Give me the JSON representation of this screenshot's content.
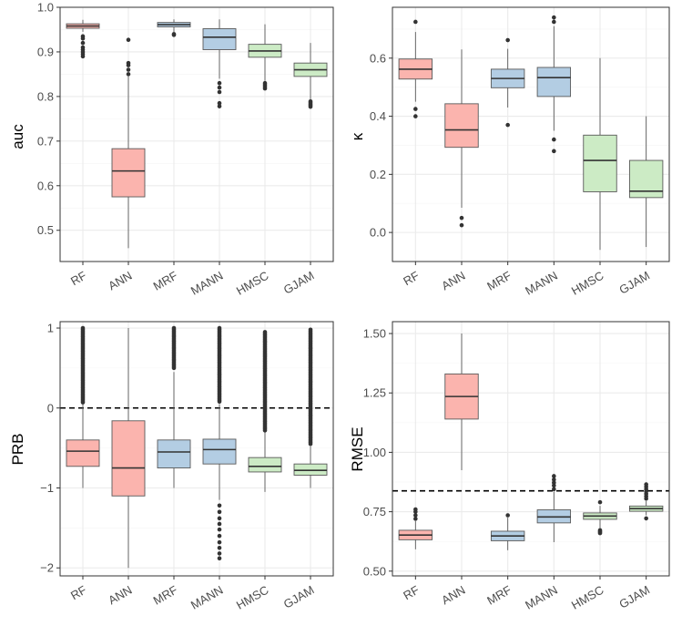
{
  "colors": {
    "group1_fill": "#fbb4ae",
    "group2_fill": "#b3cde3",
    "group3_fill": "#ccebc5",
    "outline": "#595959",
    "median": "#333333",
    "grid_major": "#ebebeb",
    "grid_minor": "#f4f4f4",
    "panel_border": "#333333",
    "reference_line": "#000000"
  },
  "chart_data": [
    {
      "id": "auc",
      "type": "box",
      "ylabel": "auc",
      "ylim": [
        0.43,
        1.0
      ],
      "yticks": [
        0.5,
        0.6,
        0.7,
        0.8,
        0.9,
        1.0
      ],
      "ytick_labels": [
        "0.5",
        "0.6",
        "0.7",
        "0.8",
        "0.9",
        "1.0"
      ],
      "minor_ticks": [
        0.55,
        0.65,
        0.75,
        0.85,
        0.95
      ],
      "categories": [
        "RF",
        "ANN",
        "MRF",
        "MANN",
        "HMSC",
        "GJAM"
      ],
      "groups": [
        1,
        1,
        2,
        2,
        3,
        3
      ],
      "reference_line": null,
      "boxes": [
        {
          "q1": 0.953,
          "median": 0.958,
          "q3": 0.963,
          "whisker_low": 0.945,
          "whisker_high": 0.972,
          "outliers": [
            0.935,
            0.93,
            0.92,
            0.91,
            0.905,
            0.9,
            0.895,
            0.89
          ]
        },
        {
          "q1": 0.575,
          "median": 0.633,
          "q3": 0.683,
          "whisker_low": 0.46,
          "whisker_high": 0.845,
          "outliers": [
            0.85,
            0.86,
            0.87,
            0.875,
            0.927
          ]
        },
        {
          "q1": 0.956,
          "median": 0.961,
          "q3": 0.966,
          "whisker_low": 0.944,
          "whisker_high": 0.973,
          "outliers": [
            0.94,
            0.938
          ]
        },
        {
          "q1": 0.905,
          "median": 0.933,
          "q3": 0.952,
          "whisker_low": 0.84,
          "whisker_high": 0.973,
          "outliers": [
            0.83,
            0.82,
            0.81,
            0.785,
            0.778
          ]
        },
        {
          "q1": 0.888,
          "median": 0.902,
          "q3": 0.917,
          "whisker_low": 0.835,
          "whisker_high": 0.962,
          "outliers": [
            0.83,
            0.826,
            0.822,
            0.818
          ]
        },
        {
          "q1": 0.845,
          "median": 0.86,
          "q3": 0.875,
          "whisker_low": 0.792,
          "whisker_high": 0.92,
          "outliers": [
            0.789,
            0.786,
            0.783,
            0.78,
            0.777
          ]
        }
      ]
    },
    {
      "id": "kappa",
      "type": "box",
      "ylabel": "κ",
      "ylim": [
        -0.1,
        0.775
      ],
      "yticks": [
        0.0,
        0.2,
        0.4,
        0.6
      ],
      "ytick_labels": [
        "0.0",
        "0.2",
        "0.4",
        "0.6"
      ],
      "minor_ticks": [
        -0.1,
        0.1,
        0.3,
        0.5,
        0.7
      ],
      "categories": [
        "RF",
        "ANN",
        "MRF",
        "MANN",
        "HMSC",
        "GJAM"
      ],
      "groups": [
        1,
        1,
        2,
        2,
        3,
        3
      ],
      "reference_line": null,
      "boxes": [
        {
          "q1": 0.528,
          "median": 0.562,
          "q3": 0.597,
          "whisker_low": 0.45,
          "whisker_high": 0.69,
          "outliers": [
            0.725,
            0.425,
            0.4
          ]
        },
        {
          "q1": 0.293,
          "median": 0.353,
          "q3": 0.443,
          "whisker_low": 0.085,
          "whisker_high": 0.63,
          "outliers": [
            0.05,
            0.025
          ]
        },
        {
          "q1": 0.498,
          "median": 0.53,
          "q3": 0.562,
          "whisker_low": 0.43,
          "whisker_high": 0.632,
          "outliers": [
            0.662,
            0.37
          ]
        },
        {
          "q1": 0.468,
          "median": 0.533,
          "q3": 0.568,
          "whisker_low": 0.35,
          "whisker_high": 0.71,
          "outliers": [
            0.74,
            0.725,
            0.32,
            0.28
          ]
        },
        {
          "q1": 0.14,
          "median": 0.248,
          "q3": 0.335,
          "whisker_low": -0.06,
          "whisker_high": 0.6,
          "outliers": []
        },
        {
          "q1": 0.12,
          "median": 0.142,
          "q3": 0.248,
          "whisker_low": -0.05,
          "whisker_high": 0.4,
          "outliers": []
        }
      ]
    },
    {
      "id": "prb",
      "type": "box",
      "ylabel": "PRB",
      "ylim": [
        -2.1,
        1.08
      ],
      "yticks": [
        -2,
        -1,
        0,
        1
      ],
      "ytick_labels": [
        "−2",
        "−1",
        "0",
        "1"
      ],
      "minor_ticks": [
        -1.5,
        -0.5,
        0.5
      ],
      "categories": [
        "RF",
        "ANN",
        "MRF",
        "MANN",
        "HMSC",
        "GJAM"
      ],
      "groups": [
        1,
        1,
        2,
        2,
        3,
        3
      ],
      "reference_line": 0,
      "boxes": [
        {
          "q1": -0.73,
          "median": -0.54,
          "q3": -0.4,
          "whisker_low": -1.0,
          "whisker_high": 0.05,
          "outliers": [],
          "outlier_band": [
            0.07,
            1.0
          ]
        },
        {
          "q1": -1.1,
          "median": -0.75,
          "q3": -0.16,
          "whisker_low": -2.0,
          "whisker_high": 1.0,
          "outliers": []
        },
        {
          "q1": -0.75,
          "median": -0.55,
          "q3": -0.4,
          "whisker_low": -1.0,
          "whisker_high": 0.45,
          "outliers": [],
          "outlier_band": [
            0.5,
            1.0
          ]
        },
        {
          "q1": -0.7,
          "median": -0.52,
          "q3": -0.39,
          "whisker_low": -1.15,
          "whisker_high": 0.05,
          "outliers": [
            -1.22,
            -1.3,
            -1.38,
            -1.45,
            -1.52,
            -1.6,
            -1.68,
            -1.75,
            -1.82,
            -1.88
          ],
          "outlier_band": [
            0.08,
            1.0
          ]
        },
        {
          "q1": -0.8,
          "median": -0.73,
          "q3": -0.62,
          "whisker_low": -1.05,
          "whisker_high": -0.3,
          "outliers": [],
          "outlier_band": [
            -0.28,
            0.95
          ]
        },
        {
          "q1": -0.84,
          "median": -0.78,
          "q3": -0.7,
          "whisker_low": -1.0,
          "whisker_high": -0.48,
          "outliers": [],
          "outlier_band": [
            -0.45,
            0.98
          ]
        }
      ]
    },
    {
      "id": "rmse",
      "type": "box",
      "ylabel": "RMSE",
      "ylim": [
        0.48,
        1.55
      ],
      "yticks": [
        0.5,
        0.75,
        1.0,
        1.25,
        1.5
      ],
      "ytick_labels": [
        "0.50",
        "0.75",
        "1.00",
        "1.25",
        "1.50"
      ],
      "minor_ticks": [
        0.625,
        0.875,
        1.125,
        1.375
      ],
      "categories": [
        "RF",
        "ANN",
        "MRF",
        "MANN",
        "HMSC",
        "GJAM"
      ],
      "groups": [
        1,
        1,
        2,
        2,
        3,
        3
      ],
      "reference_line": 0.838,
      "boxes": [
        {
          "q1": 0.632,
          "median": 0.652,
          "q3": 0.672,
          "whisker_low": 0.592,
          "whisker_high": 0.71,
          "outliers": [
            0.72,
            0.735,
            0.75,
            0.76
          ]
        },
        {
          "q1": 1.14,
          "median": 1.235,
          "q3": 1.33,
          "whisker_low": 0.925,
          "whisker_high": 1.5,
          "outliers": []
        },
        {
          "q1": 0.628,
          "median": 0.648,
          "q3": 0.668,
          "whisker_low": 0.588,
          "whisker_high": 0.725,
          "outliers": [
            0.735
          ]
        },
        {
          "q1": 0.703,
          "median": 0.728,
          "q3": 0.758,
          "whisker_low": 0.622,
          "whisker_high": 0.835,
          "outliers": [
            0.845,
            0.86,
            0.872,
            0.885,
            0.9
          ]
        },
        {
          "q1": 0.718,
          "median": 0.732,
          "q3": 0.745,
          "whisker_low": 0.68,
          "whisker_high": 0.775,
          "outliers": [
            0.672,
            0.668,
            0.664,
            0.66,
            0.79
          ]
        },
        {
          "q1": 0.752,
          "median": 0.763,
          "q3": 0.774,
          "whisker_low": 0.735,
          "whisker_high": 0.795,
          "outliers": [
            0.805,
            0.815,
            0.825,
            0.835,
            0.845,
            0.855,
            0.865,
            0.722
          ]
        }
      ]
    }
  ]
}
